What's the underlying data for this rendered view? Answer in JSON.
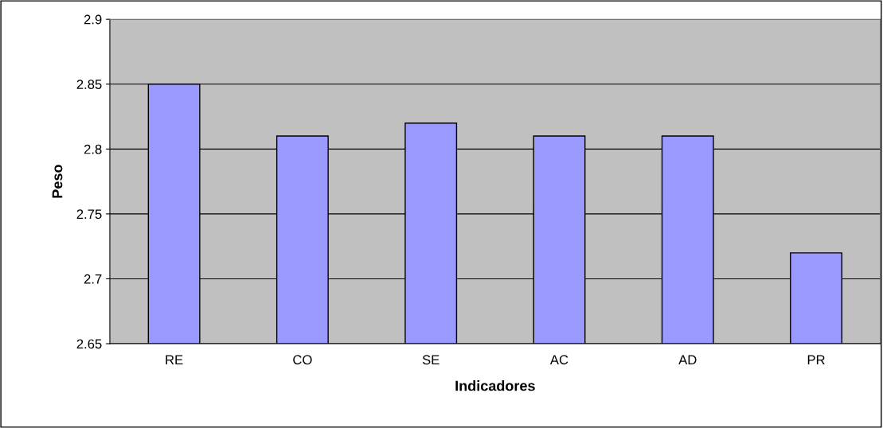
{
  "chart_data": {
    "type": "bar",
    "xlabel": "Indicadores",
    "ylabel": "Peso",
    "categories": [
      "RE",
      "CO",
      "SE",
      "AC",
      "AD",
      "PR"
    ],
    "values": [
      2.85,
      2.81,
      2.82,
      2.81,
      2.81,
      2.72
    ],
    "color": "#9999ff",
    "ylim": [
      2.65,
      2.9
    ],
    "yticks": [
      2.65,
      2.7,
      2.75,
      2.8,
      2.85,
      2.9
    ],
    "grid": "y",
    "legend": false
  }
}
